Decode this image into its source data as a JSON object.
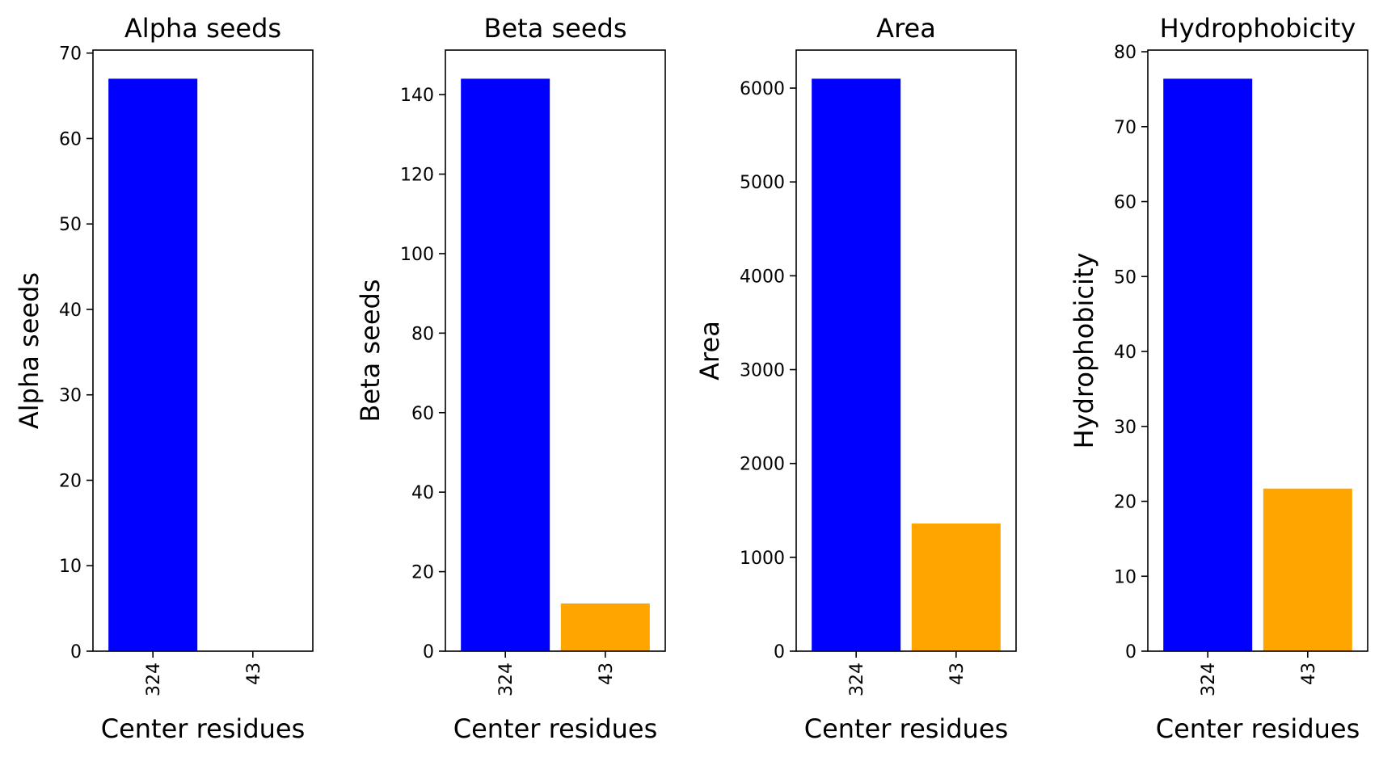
{
  "chart_data": [
    {
      "type": "bar",
      "title": "Alpha seeds",
      "xlabel": "Center residues",
      "ylabel": "Alpha seeds",
      "categories": [
        "324",
        "43"
      ],
      "values": [
        67,
        0
      ],
      "colors": [
        "#0000ff",
        "#ffa500"
      ],
      "ylim": [
        0,
        70.35
      ],
      "yticks": [
        0,
        10,
        20,
        30,
        40,
        50,
        60,
        70
      ],
      "grid": false
    },
    {
      "type": "bar",
      "title": "Beta seeds",
      "xlabel": "Center residues",
      "ylabel": "Beta seeds",
      "categories": [
        "324",
        "43"
      ],
      "values": [
        144,
        12
      ],
      "colors": [
        "#0000ff",
        "#ffa500"
      ],
      "ylim": [
        0,
        151.2
      ],
      "yticks": [
        0,
        20,
        40,
        60,
        80,
        100,
        120,
        140
      ],
      "grid": false
    },
    {
      "type": "bar",
      "title": "Area",
      "xlabel": "Center residues",
      "ylabel": "Area",
      "categories": [
        "324",
        "43"
      ],
      "values": [
        6100,
        1360
      ],
      "colors": [
        "#0000ff",
        "#ffa500"
      ],
      "ylim": [
        0,
        6405
      ],
      "yticks": [
        0,
        1000,
        2000,
        3000,
        4000,
        5000,
        6000
      ],
      "grid": false
    },
    {
      "type": "bar",
      "title": "Hydrophobicity",
      "xlabel": "Center residues",
      "ylabel": "Hydrophobicity",
      "categories": [
        "324",
        "43"
      ],
      "values": [
        76.4,
        21.7
      ],
      "colors": [
        "#0000ff",
        "#ffa500"
      ],
      "ylim": [
        0,
        80.22
      ],
      "yticks": [
        0,
        10,
        20,
        30,
        40,
        50,
        60,
        70,
        80
      ],
      "grid": false
    }
  ]
}
